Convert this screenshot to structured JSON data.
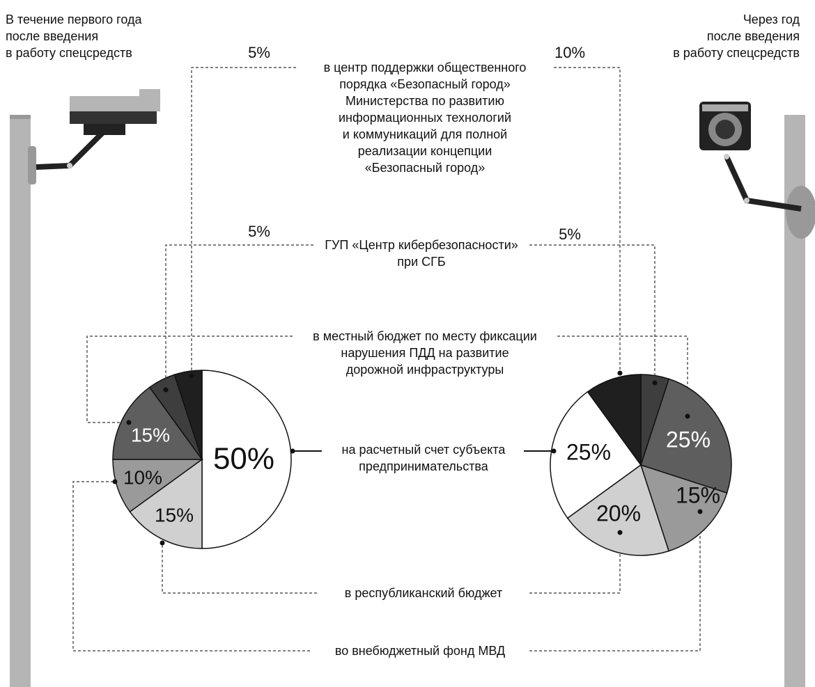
{
  "chart_data": {
    "type": "pie",
    "categories": [
      "на расчетный счет субъекта\nпредпринимательства",
      "в республиканский бюджет",
      "во внебюджетный фонд МВД",
      "в местный бюджет по месту фиксации\nнарушения ПДД на развитие\nдорожной инфраструктуры",
      "ГУП «Центр кибербезопасности»\nпри СГБ",
      "в центр поддержки общественного\nпорядка «Безопасный город»\nМинистерства по развитию\nинформационных технологий\nи коммуникаций для полной\nреализации концепции\n«Безопасный город»"
    ],
    "colors": [
      "#ffffff",
      "#d0d0d0",
      "#9a9a9a",
      "#5e5e5e",
      "#3e3e3e",
      "#1f1f1f"
    ],
    "series": [
      {
        "name": "В течение первого года\nпосле введения\nв работу спецсредств",
        "values": [
          50,
          15,
          10,
          15,
          5,
          5
        ],
        "value_labels": [
          "50%",
          "15%",
          "10%",
          "15%",
          "5%",
          "5%"
        ]
      },
      {
        "name": "Через год\nпосле введения\nв работу спецсредств",
        "values": [
          25,
          20,
          15,
          25,
          5,
          10
        ],
        "value_labels": [
          "25%",
          "20%",
          "15%",
          "25%",
          "5%",
          "10%"
        ]
      }
    ]
  }
}
